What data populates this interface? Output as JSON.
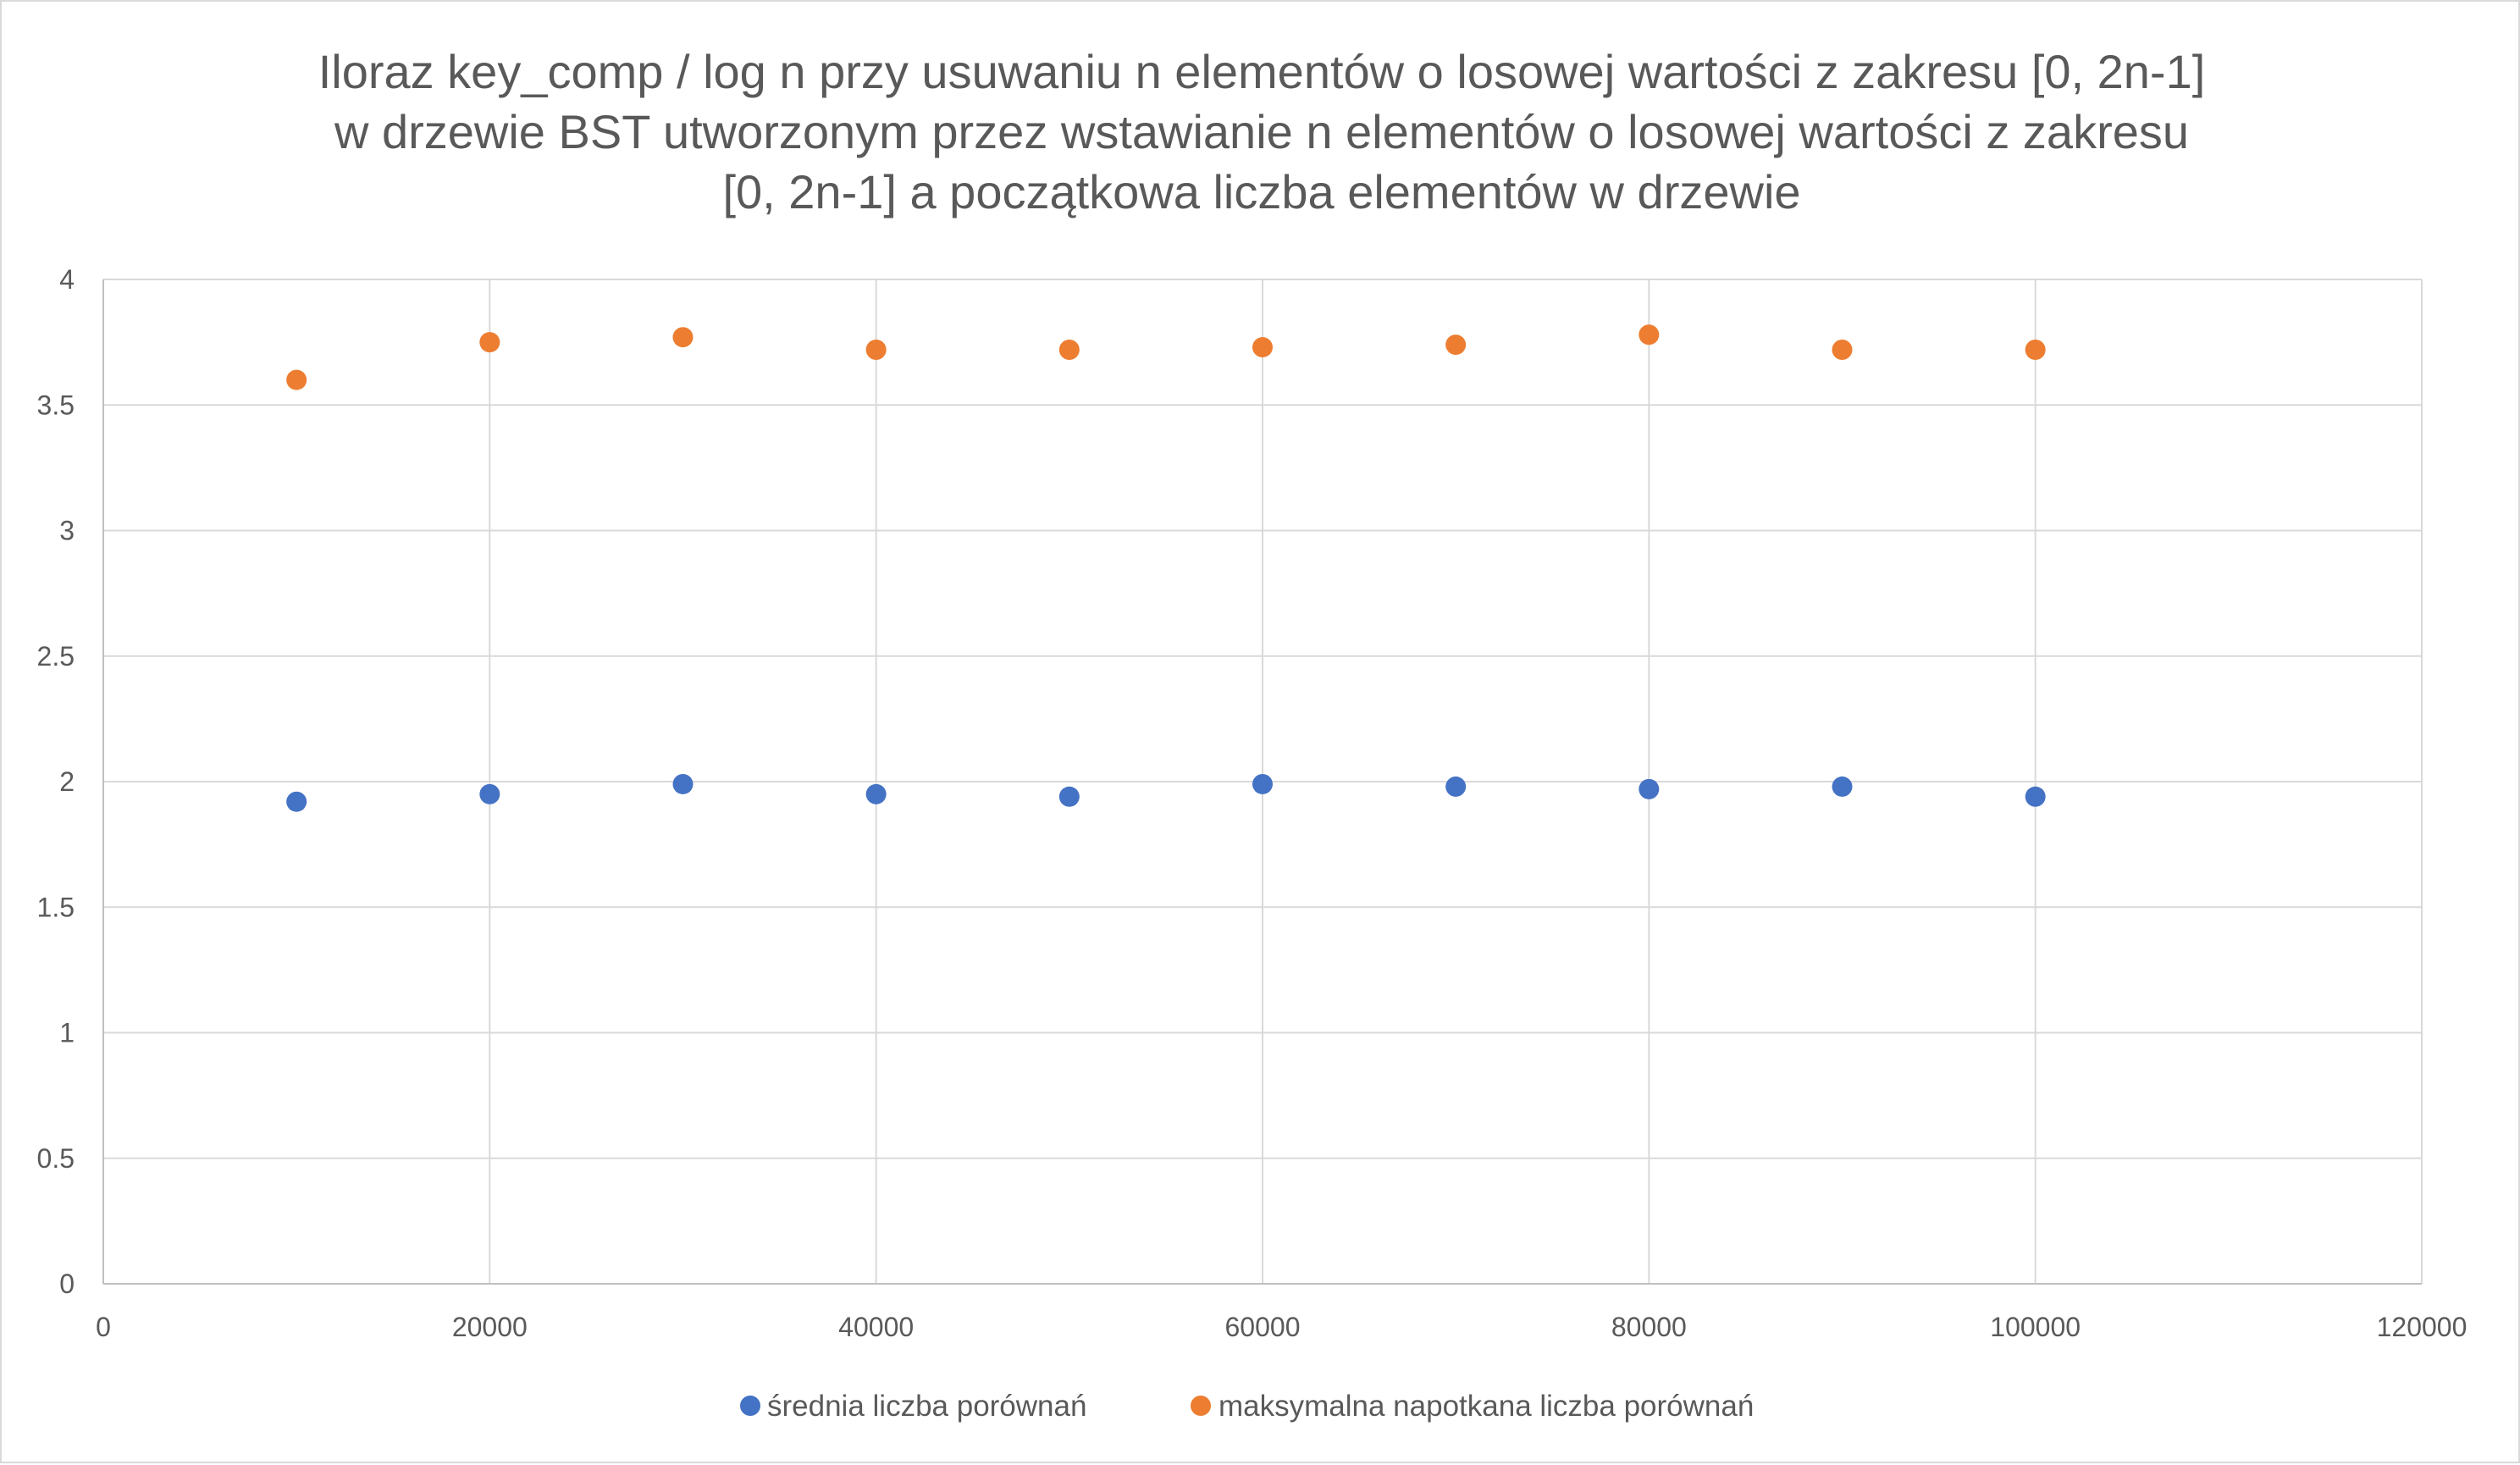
{
  "chart_data": {
    "type": "scatter",
    "title_lines": [
      "Iloraz key_comp / log n przy usuwaniu n elementów o losowej wartości z zakresu [0, 2n-1]",
      "w drzewie BST utworzonym przez wstawianie n elementów o losowej wartości z zakresu",
      "[0, 2n-1] a początkowa liczba elementów w drzewie"
    ],
    "xlabel": "",
    "ylabel": "",
    "xlim": [
      0,
      120000
    ],
    "ylim": [
      0,
      4
    ],
    "x_ticks": [
      "0",
      "20000",
      "40000",
      "60000",
      "80000",
      "100000",
      "120000"
    ],
    "y_ticks": [
      "0",
      "0.5",
      "1",
      "1.5",
      "2",
      "2.5",
      "3",
      "3.5",
      "4"
    ],
    "x_tick_values": [
      0,
      20000,
      40000,
      60000,
      80000,
      100000,
      120000
    ],
    "y_tick_values": [
      0,
      0.5,
      1,
      1.5,
      2,
      2.5,
      3,
      3.5,
      4
    ],
    "grid": true,
    "legend_position": "bottom",
    "series": [
      {
        "name": "średnia liczba porównań",
        "color": "#4472C4",
        "points": [
          {
            "x": 10000,
            "y": 1.92
          },
          {
            "x": 20000,
            "y": 1.95
          },
          {
            "x": 30000,
            "y": 1.99
          },
          {
            "x": 40000,
            "y": 1.95
          },
          {
            "x": 50000,
            "y": 1.94
          },
          {
            "x": 60000,
            "y": 1.99
          },
          {
            "x": 70000,
            "y": 1.98
          },
          {
            "x": 80000,
            "y": 1.97
          },
          {
            "x": 90000,
            "y": 1.98
          },
          {
            "x": 100000,
            "y": 1.94
          }
        ]
      },
      {
        "name": "maksymalna napotkana liczba porównań",
        "color": "#ED7D31",
        "points": [
          {
            "x": 10000,
            "y": 3.6
          },
          {
            "x": 20000,
            "y": 3.75
          },
          {
            "x": 30000,
            "y": 3.77
          },
          {
            "x": 40000,
            "y": 3.72
          },
          {
            "x": 50000,
            "y": 3.72
          },
          {
            "x": 60000,
            "y": 3.73
          },
          {
            "x": 70000,
            "y": 3.74
          },
          {
            "x": 80000,
            "y": 3.78
          },
          {
            "x": 90000,
            "y": 3.72
          },
          {
            "x": 100000,
            "y": 3.72
          }
        ]
      }
    ]
  }
}
